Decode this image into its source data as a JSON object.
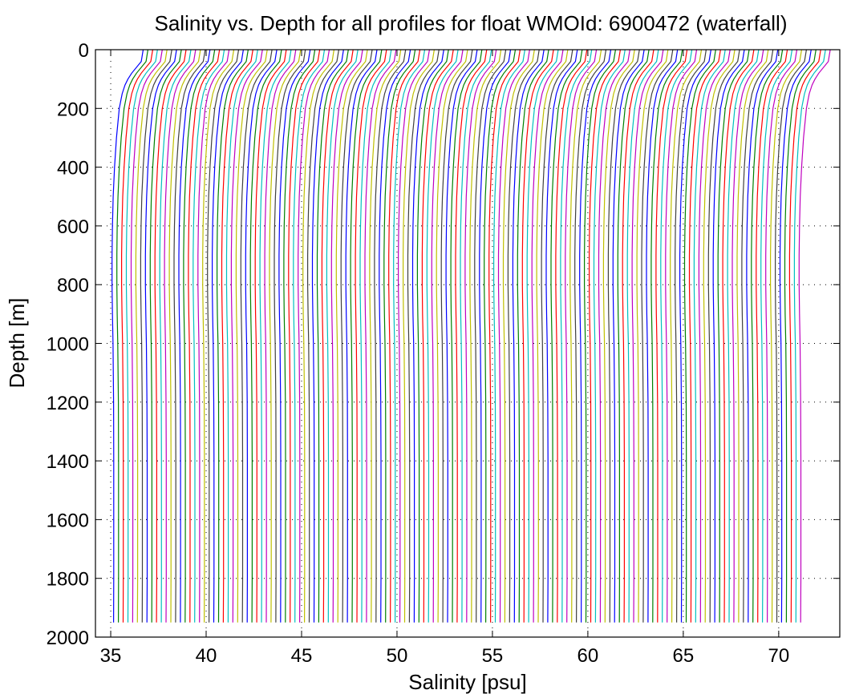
{
  "chart_data": {
    "type": "line",
    "title": "Salinity vs. Depth for all profiles for float WMOId: 6900472 (waterfall)",
    "xlabel": "Salinity [psu]",
    "ylabel": "Depth [m]",
    "xlim": [
      34.2,
      73.2
    ],
    "ylim": [
      2000,
      0
    ],
    "y_inverted": true,
    "grid": true,
    "grid_style": "dotted",
    "x_ticks": [
      35,
      40,
      45,
      50,
      55,
      60,
      65,
      70
    ],
    "x_tick_labels": [
      "35",
      "40",
      "45",
      "50",
      "55",
      "60",
      "65",
      "70"
    ],
    "y_ticks": [
      0,
      200,
      400,
      600,
      800,
      1000,
      1200,
      1400,
      1600,
      1800,
      2000
    ],
    "y_tick_labels": [
      "0",
      "200",
      "400",
      "600",
      "800",
      "1000",
      "1200",
      "1400",
      "1600",
      "1800",
      "2000"
    ],
    "waterfall_offset_psu": 0.25,
    "n_profiles": 145,
    "color_cycle": [
      "#0000ff",
      "#008000",
      "#ff0000",
      "#00bfbf",
      "#bf00bf",
      "#bfbf00",
      "#404040"
    ],
    "base_profile": {
      "depth": [
        0,
        40,
        80,
        100,
        120,
        150,
        200,
        300,
        400,
        500,
        600,
        700,
        800,
        900,
        1000,
        1200,
        1400,
        1600,
        1800,
        1950
      ],
      "salinity": [
        36.7,
        36.6,
        36.1,
        35.9,
        35.75,
        35.6,
        35.45,
        35.3,
        35.2,
        35.13,
        35.09,
        35.07,
        35.07,
        35.09,
        35.12,
        35.15,
        35.16,
        35.16,
        35.16,
        35.15
      ]
    }
  }
}
